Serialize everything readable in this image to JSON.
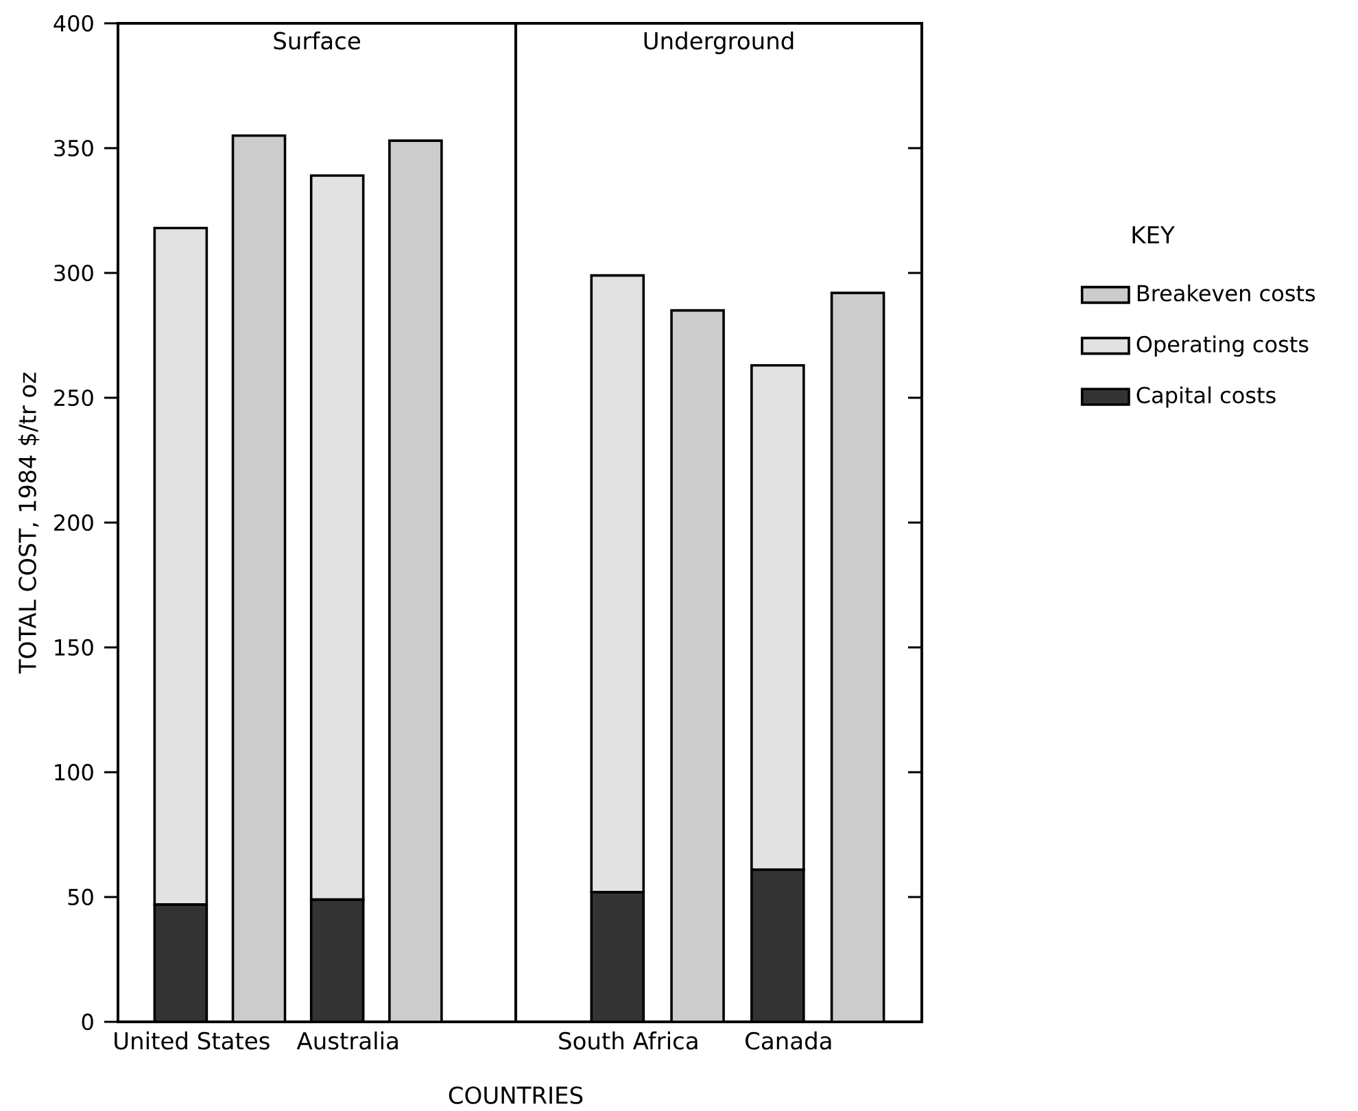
{
  "chart_data": [
    {
      "type": "bar",
      "title": "Surface",
      "xlabel": "COUNTRIES",
      "ylabel": "TOTAL COST, 1984 $/tr oz",
      "categories": [
        "United States",
        null,
        "Australia",
        null
      ],
      "stacked": true,
      "ylim": [
        0,
        400
      ],
      "yticks": [
        0,
        50,
        100,
        150,
        200,
        250,
        300,
        350,
        400
      ],
      "legend": false,
      "series": [
        {
          "color": "#333333",
          "values": [
            47,
            null,
            49,
            null
          ]
        },
        {
          "color": "#e2e2e2",
          "values": [
            271,
            null,
            290,
            null
          ]
        },
        {
          "color": "#cccccc",
          "values": [
            null,
            355,
            null,
            353
          ]
        }
      ]
    },
    {
      "type": "bar",
      "title": "Underground",
      "legend_title": "KEY",
      "categories": [
        "South Africa",
        null,
        "Canada",
        null
      ],
      "stacked": true,
      "ylim": [
        0,
        400
      ],
      "yticks": [
        0,
        50,
        100,
        150,
        200,
        250,
        300,
        350,
        400
      ],
      "tick_labels": "x",
      "legend": "right",
      "series": [
        {
          "name": "Capital costs",
          "color": "#333333",
          "values": [
            52,
            null,
            61,
            null
          ]
        },
        {
          "name": "Operating costs",
          "color": "#e2e2e2",
          "values": [
            247,
            null,
            202,
            null
          ]
        },
        {
          "name": "Breakeven costs",
          "color": "#cccccc",
          "values": [
            null,
            285,
            null,
            292
          ]
        }
      ]
    }
  ]
}
